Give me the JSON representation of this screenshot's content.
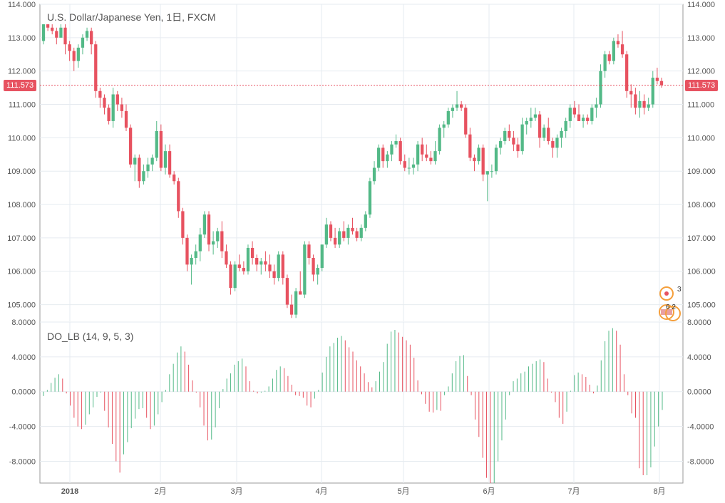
{
  "chart_data": [
    {
      "type": "candlestick",
      "title": "U.S. Dollar/Japanese Yen, 1日, FXCM",
      "ylim": [
        104.5,
        114.0
      ],
      "y_ticks": [
        "114.000",
        "113.000",
        "112.000",
        "111.000",
        "110.000",
        "109.000",
        "108.000",
        "107.000",
        "106.000",
        "105.000"
      ],
      "x_ticks": [
        "2018",
        "2月",
        "3月",
        "4月",
        "5月",
        "6月",
        "7月",
        "8月"
      ],
      "last_price": "111.573",
      "grid": true,
      "candles": [
        {
          "o": 112.9,
          "h": 113.4,
          "l": 112.8,
          "c": 113.4
        },
        {
          "o": 113.4,
          "h": 113.4,
          "l": 113.2,
          "c": 113.3
        },
        {
          "o": 113.3,
          "h": 113.4,
          "l": 113.1,
          "c": 113.2
        },
        {
          "o": 113.2,
          "h": 113.3,
          "l": 112.8,
          "c": 113.0
        },
        {
          "o": 113.0,
          "h": 113.4,
          "l": 113.0,
          "c": 113.3
        },
        {
          "o": 113.3,
          "h": 113.4,
          "l": 112.5,
          "c": 112.8
        },
        {
          "o": 112.8,
          "h": 112.9,
          "l": 112.3,
          "c": 112.6
        },
        {
          "o": 112.6,
          "h": 112.7,
          "l": 112.0,
          "c": 112.3
        },
        {
          "o": 112.3,
          "h": 112.8,
          "l": 112.1,
          "c": 112.7
        },
        {
          "o": 112.7,
          "h": 113.1,
          "l": 112.5,
          "c": 113.0
        },
        {
          "o": 113.0,
          "h": 113.3,
          "l": 112.9,
          "c": 113.2
        },
        {
          "o": 113.2,
          "h": 113.3,
          "l": 112.5,
          "c": 112.8
        },
        {
          "o": 112.8,
          "h": 112.9,
          "l": 111.2,
          "c": 111.4
        },
        {
          "o": 111.4,
          "h": 111.5,
          "l": 110.9,
          "c": 111.2
        },
        {
          "o": 111.2,
          "h": 111.3,
          "l": 110.7,
          "c": 110.9
        },
        {
          "o": 110.9,
          "h": 111.0,
          "l": 110.4,
          "c": 110.5
        },
        {
          "o": 110.5,
          "h": 111.5,
          "l": 110.3,
          "c": 111.3
        },
        {
          "o": 111.3,
          "h": 111.4,
          "l": 110.8,
          "c": 111.0
        },
        {
          "o": 111.0,
          "h": 111.2,
          "l": 110.6,
          "c": 110.8
        },
        {
          "o": 110.8,
          "h": 111.0,
          "l": 110.2,
          "c": 110.3
        },
        {
          "o": 110.3,
          "h": 110.4,
          "l": 109.1,
          "c": 109.2
        },
        {
          "o": 109.2,
          "h": 109.5,
          "l": 108.7,
          "c": 109.4
        },
        {
          "o": 109.4,
          "h": 109.5,
          "l": 108.5,
          "c": 108.7
        },
        {
          "o": 108.7,
          "h": 109.2,
          "l": 108.6,
          "c": 109.0
        },
        {
          "o": 109.0,
          "h": 109.4,
          "l": 108.8,
          "c": 109.2
        },
        {
          "o": 109.2,
          "h": 109.5,
          "l": 109.0,
          "c": 109.4
        },
        {
          "o": 109.4,
          "h": 110.5,
          "l": 109.3,
          "c": 110.2
        },
        {
          "o": 110.2,
          "h": 110.4,
          "l": 109.0,
          "c": 109.1
        },
        {
          "o": 109.1,
          "h": 109.8,
          "l": 108.9,
          "c": 109.6
        },
        {
          "o": 109.6,
          "h": 109.8,
          "l": 108.8,
          "c": 108.9
        },
        {
          "o": 108.9,
          "h": 109.0,
          "l": 108.6,
          "c": 108.7
        },
        {
          "o": 108.7,
          "h": 108.8,
          "l": 107.6,
          "c": 107.8
        },
        {
          "o": 107.8,
          "h": 107.9,
          "l": 106.8,
          "c": 107.0
        },
        {
          "o": 107.0,
          "h": 107.1,
          "l": 106.0,
          "c": 106.2
        },
        {
          "o": 106.2,
          "h": 106.5,
          "l": 105.6,
          "c": 106.4
        },
        {
          "o": 106.4,
          "h": 106.8,
          "l": 106.2,
          "c": 106.6
        },
        {
          "o": 106.6,
          "h": 107.3,
          "l": 106.3,
          "c": 107.1
        },
        {
          "o": 107.1,
          "h": 107.8,
          "l": 107.0,
          "c": 107.7
        },
        {
          "o": 107.7,
          "h": 107.8,
          "l": 106.6,
          "c": 106.8
        },
        {
          "o": 106.8,
          "h": 107.2,
          "l": 106.5,
          "c": 106.9
        },
        {
          "o": 106.9,
          "h": 107.3,
          "l": 106.7,
          "c": 107.2
        },
        {
          "o": 107.2,
          "h": 107.5,
          "l": 106.4,
          "c": 106.6
        },
        {
          "o": 106.6,
          "h": 106.8,
          "l": 106.1,
          "c": 106.2
        },
        {
          "o": 106.2,
          "h": 106.3,
          "l": 105.3,
          "c": 105.5
        },
        {
          "o": 105.5,
          "h": 106.3,
          "l": 105.4,
          "c": 106.2
        },
        {
          "o": 106.2,
          "h": 106.5,
          "l": 106.0,
          "c": 106.1
        },
        {
          "o": 106.1,
          "h": 106.3,
          "l": 105.9,
          "c": 106.0
        },
        {
          "o": 106.0,
          "h": 106.8,
          "l": 105.9,
          "c": 106.7
        },
        {
          "o": 106.7,
          "h": 106.9,
          "l": 106.2,
          "c": 106.4
        },
        {
          "o": 106.4,
          "h": 106.5,
          "l": 106.0,
          "c": 106.2
        },
        {
          "o": 106.2,
          "h": 106.4,
          "l": 105.9,
          "c": 106.3
        },
        {
          "o": 106.3,
          "h": 106.6,
          "l": 106.0,
          "c": 106.2
        },
        {
          "o": 106.2,
          "h": 106.5,
          "l": 105.8,
          "c": 106.0
        },
        {
          "o": 106.0,
          "h": 106.2,
          "l": 105.6,
          "c": 105.8
        },
        {
          "o": 105.8,
          "h": 106.6,
          "l": 105.7,
          "c": 106.5
        },
        {
          "o": 106.5,
          "h": 106.6,
          "l": 105.6,
          "c": 105.8
        },
        {
          "o": 105.8,
          "h": 105.9,
          "l": 104.9,
          "c": 105.0
        },
        {
          "o": 105.0,
          "h": 105.3,
          "l": 104.6,
          "c": 104.7
        },
        {
          "o": 104.7,
          "h": 105.5,
          "l": 104.6,
          "c": 105.4
        },
        {
          "o": 105.4,
          "h": 106.0,
          "l": 105.3,
          "c": 105.3
        },
        {
          "o": 105.3,
          "h": 106.9,
          "l": 105.2,
          "c": 106.8
        },
        {
          "o": 106.8,
          "h": 106.9,
          "l": 106.2,
          "c": 106.4
        },
        {
          "o": 106.4,
          "h": 106.5,
          "l": 105.7,
          "c": 105.9
        },
        {
          "o": 105.9,
          "h": 106.2,
          "l": 105.6,
          "c": 106.1
        },
        {
          "o": 106.1,
          "h": 106.8,
          "l": 106.0,
          "c": 106.8
        },
        {
          "o": 106.8,
          "h": 107.6,
          "l": 106.7,
          "c": 107.4
        },
        {
          "o": 107.4,
          "h": 107.5,
          "l": 106.9,
          "c": 107.0
        },
        {
          "o": 107.0,
          "h": 107.3,
          "l": 106.7,
          "c": 106.8
        },
        {
          "o": 106.8,
          "h": 107.3,
          "l": 106.7,
          "c": 107.2
        },
        {
          "o": 107.2,
          "h": 107.5,
          "l": 106.9,
          "c": 107.0
        },
        {
          "o": 107.0,
          "h": 107.4,
          "l": 106.8,
          "c": 107.3
        },
        {
          "o": 107.3,
          "h": 107.6,
          "l": 107.1,
          "c": 107.2
        },
        {
          "o": 107.2,
          "h": 107.3,
          "l": 106.9,
          "c": 107.0
        },
        {
          "o": 107.0,
          "h": 107.4,
          "l": 106.9,
          "c": 107.3
        },
        {
          "o": 107.3,
          "h": 107.8,
          "l": 107.2,
          "c": 107.7
        },
        {
          "o": 107.7,
          "h": 108.8,
          "l": 107.6,
          "c": 108.7
        },
        {
          "o": 108.7,
          "h": 109.3,
          "l": 108.6,
          "c": 109.1
        },
        {
          "o": 109.1,
          "h": 109.8,
          "l": 109.0,
          "c": 109.7
        },
        {
          "o": 109.7,
          "h": 109.8,
          "l": 109.1,
          "c": 109.3
        },
        {
          "o": 109.3,
          "h": 109.6,
          "l": 109.1,
          "c": 109.5
        },
        {
          "o": 109.5,
          "h": 109.9,
          "l": 109.3,
          "c": 109.8
        },
        {
          "o": 109.8,
          "h": 110.1,
          "l": 109.7,
          "c": 109.9
        },
        {
          "o": 109.9,
          "h": 110.0,
          "l": 109.2,
          "c": 109.3
        },
        {
          "o": 109.3,
          "h": 109.5,
          "l": 109.0,
          "c": 109.1
        },
        {
          "o": 109.1,
          "h": 109.4,
          "l": 108.9,
          "c": 109.1
        },
        {
          "o": 109.1,
          "h": 109.4,
          "l": 108.9,
          "c": 109.2
        },
        {
          "o": 109.2,
          "h": 109.9,
          "l": 109.0,
          "c": 109.8
        },
        {
          "o": 109.8,
          "h": 110.0,
          "l": 109.3,
          "c": 109.5
        },
        {
          "o": 109.5,
          "h": 109.8,
          "l": 109.3,
          "c": 109.4
        },
        {
          "o": 109.4,
          "h": 109.6,
          "l": 109.2,
          "c": 109.3
        },
        {
          "o": 109.3,
          "h": 109.9,
          "l": 109.2,
          "c": 109.6
        },
        {
          "o": 109.6,
          "h": 110.4,
          "l": 109.5,
          "c": 110.3
        },
        {
          "o": 110.3,
          "h": 110.5,
          "l": 110.0,
          "c": 110.4
        },
        {
          "o": 110.4,
          "h": 110.9,
          "l": 110.3,
          "c": 110.8
        },
        {
          "o": 110.8,
          "h": 111.0,
          "l": 110.6,
          "c": 110.9
        },
        {
          "o": 110.9,
          "h": 111.4,
          "l": 110.8,
          "c": 111.0
        },
        {
          "o": 111.0,
          "h": 111.1,
          "l": 110.8,
          "c": 110.9
        },
        {
          "o": 110.9,
          "h": 111.0,
          "l": 110.0,
          "c": 110.1
        },
        {
          "o": 110.1,
          "h": 110.3,
          "l": 109.3,
          "c": 109.4
        },
        {
          "o": 109.4,
          "h": 109.5,
          "l": 109.0,
          "c": 109.3
        },
        {
          "o": 109.3,
          "h": 109.8,
          "l": 109.2,
          "c": 109.7
        },
        {
          "o": 109.7,
          "h": 109.8,
          "l": 108.7,
          "c": 108.9
        },
        {
          "o": 108.9,
          "h": 109.0,
          "l": 108.1,
          "c": 109.0
        },
        {
          "o": 109.0,
          "h": 109.2,
          "l": 108.8,
          "c": 109.0
        },
        {
          "o": 109.0,
          "h": 109.8,
          "l": 108.9,
          "c": 109.7
        },
        {
          "o": 109.7,
          "h": 110.0,
          "l": 109.5,
          "c": 109.9
        },
        {
          "o": 109.9,
          "h": 110.3,
          "l": 109.8,
          "c": 110.2
        },
        {
          "o": 110.2,
          "h": 110.4,
          "l": 109.9,
          "c": 110.0
        },
        {
          "o": 110.0,
          "h": 110.2,
          "l": 109.6,
          "c": 109.8
        },
        {
          "o": 109.8,
          "h": 110.0,
          "l": 109.4,
          "c": 109.6
        },
        {
          "o": 109.6,
          "h": 110.6,
          "l": 109.5,
          "c": 110.4
        },
        {
          "o": 110.4,
          "h": 110.6,
          "l": 110.1,
          "c": 110.5
        },
        {
          "o": 110.5,
          "h": 110.9,
          "l": 110.3,
          "c": 110.6
        },
        {
          "o": 110.6,
          "h": 110.9,
          "l": 110.5,
          "c": 110.7
        },
        {
          "o": 110.7,
          "h": 110.8,
          "l": 109.7,
          "c": 110.0
        },
        {
          "o": 110.0,
          "h": 110.4,
          "l": 109.9,
          "c": 110.3
        },
        {
          "o": 110.3,
          "h": 110.6,
          "l": 109.8,
          "c": 109.9
        },
        {
          "o": 109.9,
          "h": 110.0,
          "l": 109.4,
          "c": 109.7
        },
        {
          "o": 109.7,
          "h": 110.1,
          "l": 109.4,
          "c": 110.0
        },
        {
          "o": 110.0,
          "h": 110.3,
          "l": 109.7,
          "c": 110.2
        },
        {
          "o": 110.2,
          "h": 110.6,
          "l": 110.0,
          "c": 110.5
        },
        {
          "o": 110.5,
          "h": 111.0,
          "l": 110.3,
          "c": 110.9
        },
        {
          "o": 110.9,
          "h": 111.1,
          "l": 110.6,
          "c": 110.7
        },
        {
          "o": 110.7,
          "h": 111.0,
          "l": 110.5,
          "c": 110.5
        },
        {
          "o": 110.5,
          "h": 110.7,
          "l": 110.3,
          "c": 110.6
        },
        {
          "o": 110.6,
          "h": 110.7,
          "l": 110.4,
          "c": 110.5
        },
        {
          "o": 110.5,
          "h": 111.0,
          "l": 110.4,
          "c": 110.9
        },
        {
          "o": 110.9,
          "h": 111.2,
          "l": 110.6,
          "c": 111.0
        },
        {
          "o": 111.0,
          "h": 112.2,
          "l": 110.9,
          "c": 112.0
        },
        {
          "o": 112.0,
          "h": 112.6,
          "l": 111.8,
          "c": 112.5
        },
        {
          "o": 112.5,
          "h": 112.6,
          "l": 112.2,
          "c": 112.3
        },
        {
          "o": 112.3,
          "h": 113.0,
          "l": 112.2,
          "c": 112.9
        },
        {
          "o": 112.9,
          "h": 113.1,
          "l": 112.7,
          "c": 112.8
        },
        {
          "o": 112.8,
          "h": 113.2,
          "l": 112.4,
          "c": 112.5
        },
        {
          "o": 112.5,
          "h": 112.6,
          "l": 111.2,
          "c": 111.4
        },
        {
          "o": 111.4,
          "h": 111.6,
          "l": 110.9,
          "c": 111.3
        },
        {
          "o": 111.3,
          "h": 111.5,
          "l": 110.7,
          "c": 110.9
        },
        {
          "o": 110.9,
          "h": 111.4,
          "l": 110.6,
          "c": 111.1
        },
        {
          "o": 111.1,
          "h": 111.3,
          "l": 110.7,
          "c": 110.9
        },
        {
          "o": 110.9,
          "h": 111.2,
          "l": 110.8,
          "c": 111.0
        },
        {
          "o": 111.0,
          "h": 112.0,
          "l": 110.9,
          "c": 111.8
        },
        {
          "o": 111.8,
          "h": 112.1,
          "l": 111.6,
          "c": 111.7
        },
        {
          "o": 111.7,
          "h": 111.8,
          "l": 111.5,
          "c": 111.573
        }
      ]
    },
    {
      "type": "bar",
      "title": "DO_LB (14, 9, 5, 3)",
      "ylim": [
        -10.5,
        8.0
      ],
      "y_ticks": [
        "8.0000",
        "4.0000",
        "0.0000",
        "-4.0000",
        "-8.0000"
      ],
      "grid": true,
      "values": [
        -0.5,
        0.2,
        1.0,
        1.6,
        2.0,
        1.5,
        -0.2,
        -1.6,
        -3.0,
        -4.0,
        -4.3,
        -3.8,
        -2.6,
        -1.8,
        -0.6,
        -0.1,
        -2.2,
        -4.1,
        -6.0,
        -8.0,
        -9.3,
        -7.2,
        -5.8,
        -4.2,
        -3.1,
        -2.0,
        -1.9,
        -3.0,
        -4.3,
        -3.9,
        -2.6,
        -1.2,
        0.2,
        2.0,
        3.2,
        4.5,
        5.2,
        4.6,
        3.1,
        1.3,
        -0.1,
        -1.8,
        -3.9,
        -5.6,
        -5.5,
        -4.1,
        -1.9,
        0.3,
        1.5,
        2.1,
        3.1,
        3.5,
        3.8,
        2.9,
        1.2,
        0.1,
        -0.2,
        -0.1,
        0.1,
        0.6,
        1.5,
        2.5,
        2.9,
        2.7,
        1.8,
        0.8,
        -0.4,
        -0.5,
        -0.7,
        -1.6,
        -1.8,
        -0.8,
        0.2,
        2.2,
        4.0,
        5.2,
        5.6,
        6.2,
        6.4,
        5.9,
        5.1,
        4.6,
        3.6,
        2.9,
        2.1,
        1.1,
        0.5,
        1.2,
        2.3,
        3.4,
        5.5,
        6.9,
        7.1,
        6.8,
        6.3,
        5.9,
        5.4,
        3.9,
        1.3,
        -0.3,
        -1.4,
        -2.3,
        -2.4,
        -2.1,
        -2.2,
        -0.4,
        0.6,
        2.1,
        3.5,
        4.1,
        4.2,
        1.8,
        -0.4,
        -3.2,
        -5.2,
        -7.6,
        -9.9,
        -10.5,
        -10.5,
        -8.0,
        -5.6,
        -3.2,
        -0.4,
        1.2,
        1.5,
        2.1,
        2.3,
        2.9,
        3.2,
        3.5,
        3.7,
        3.4,
        1.5,
        -0.1,
        -1.2,
        -3.0,
        -3.7,
        -2.3,
        0.1,
        1.9,
        2.2,
        2.0,
        1.7,
        0.8,
        -0.2,
        0.7,
        3.6,
        5.8,
        7.0,
        7.3,
        7.0,
        5.4,
        2.0,
        -0.4,
        -2.5,
        -3.0,
        -8.8,
        -9.6,
        -9.6,
        -8.7,
        -6.3,
        -4.0,
        -2.1
      ]
    }
  ],
  "event_markers": {
    "top_count": "3",
    "bottom_count": "6 2"
  },
  "colors": {
    "up": "#53b987",
    "down": "#e75260",
    "grid": "#e6ebf0",
    "axis": "#555555",
    "last_line": "#e75260"
  }
}
